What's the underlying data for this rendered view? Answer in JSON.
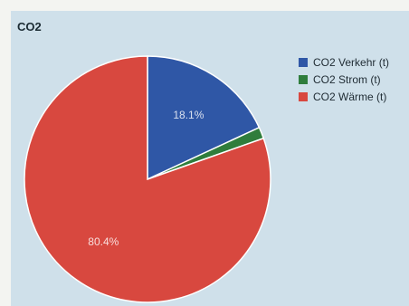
{
  "title": "CO2",
  "chart_data": {
    "type": "pie",
    "title": "CO2",
    "categories": [
      "CO2 Verkehr (t)",
      "CO2 Strom (t)",
      "CO2 Wärme (t)"
    ],
    "values": [
      18.1,
      1.5,
      80.4
    ],
    "slice_labels": [
      "18.1%",
      "",
      "80.4%"
    ],
    "colors": [
      "#2f57a6",
      "#2f7d3c",
      "#d8483f"
    ],
    "legend": "right",
    "start_angle": "12 o'clock, clockwise"
  }
}
